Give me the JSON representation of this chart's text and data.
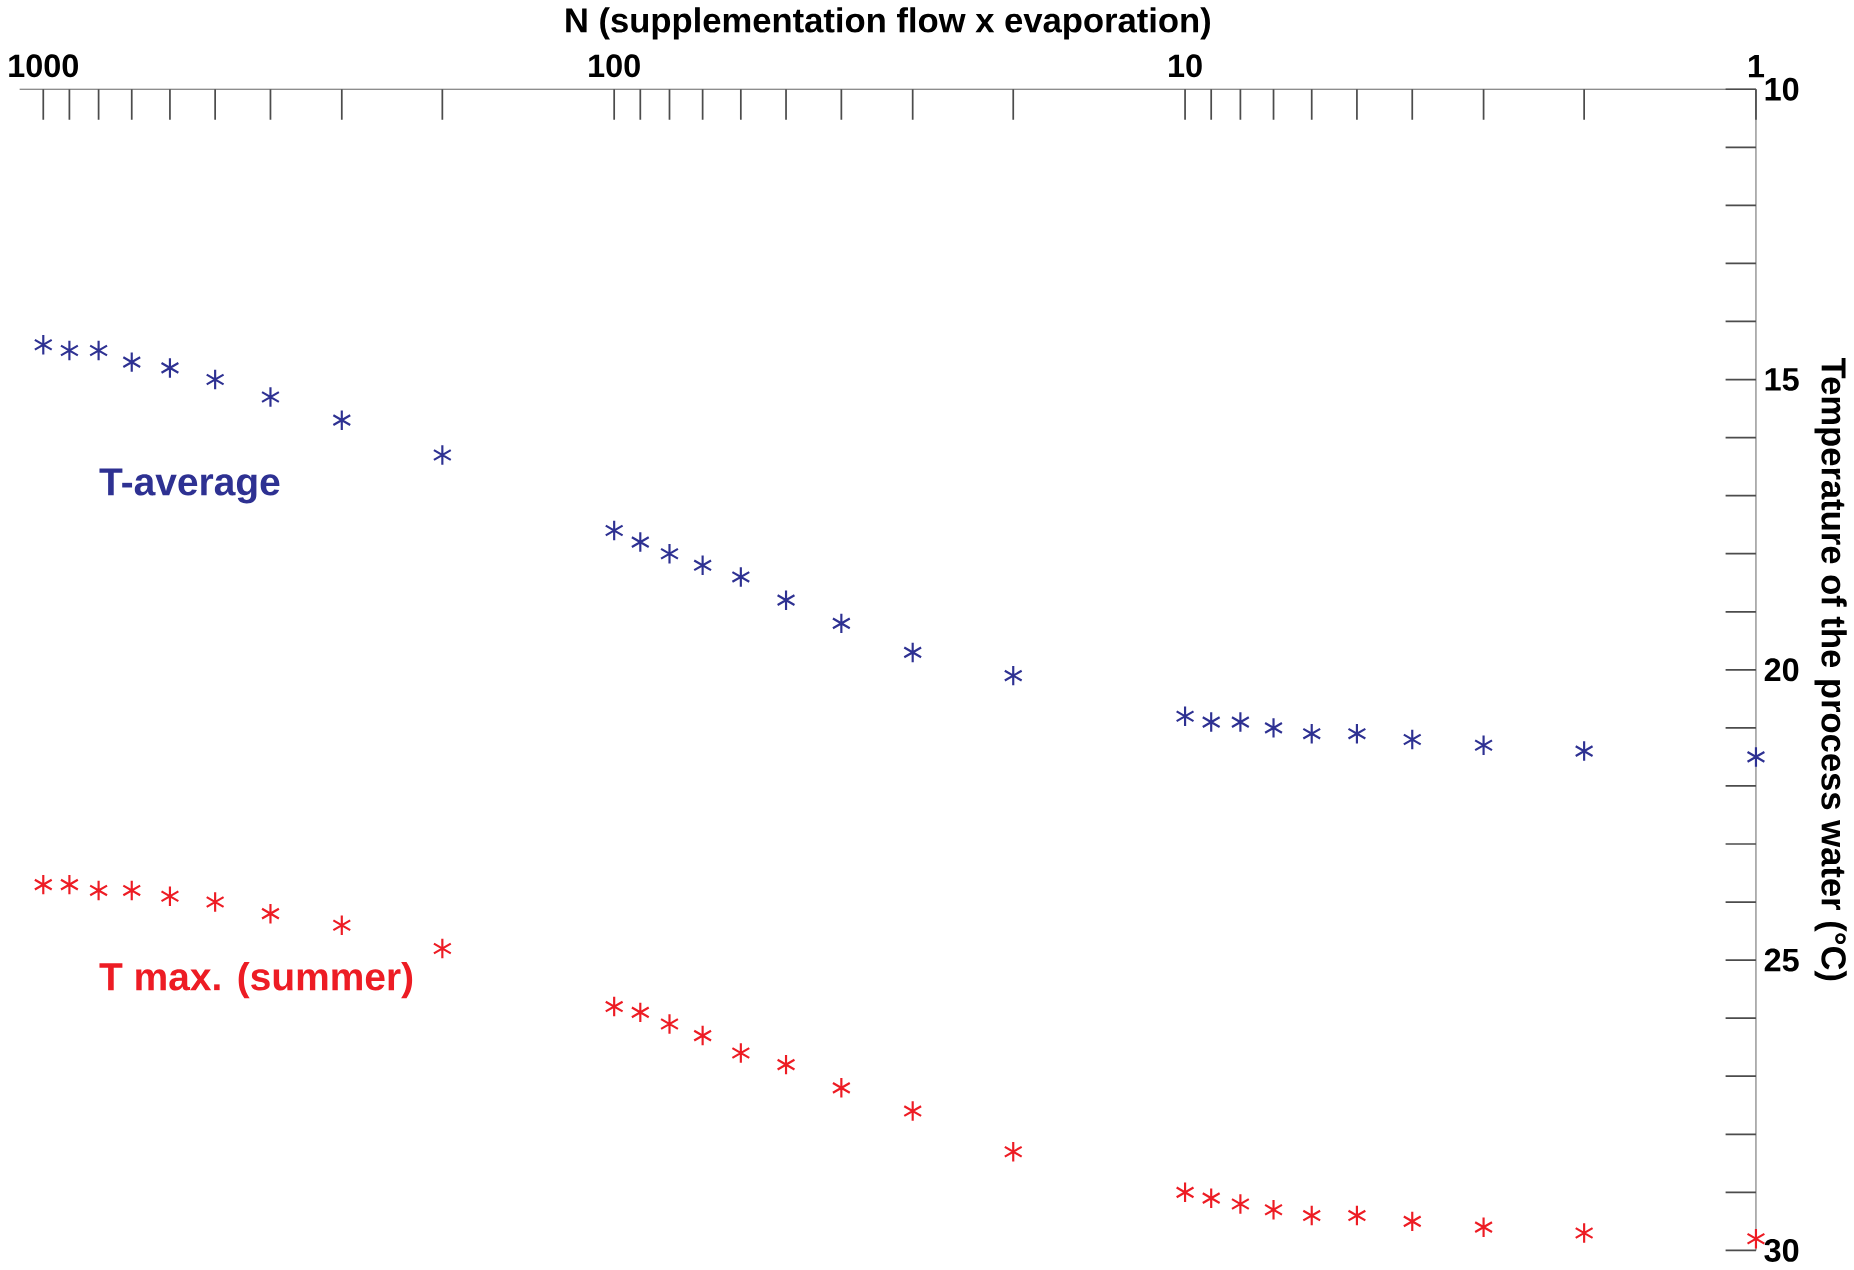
{
  "chart_data": {
    "type": "scatter",
    "xlabel": "N (supplementation flow x evaporation)",
    "ylabel": "Temperature of the process water (°C)",
    "log": "x",
    "grid": false,
    "legend": false,
    "marker": "cross",
    "x": [
      1000,
      900,
      800,
      700,
      600,
      500,
      400,
      300,
      200,
      100,
      90,
      80,
      70,
      60,
      50,
      40,
      30,
      20,
      10,
      9,
      8,
      7,
      6,
      5,
      4,
      3,
      2,
      1
    ],
    "xlim": [
      1100,
      1
    ],
    "ylim": [
      30,
      10
    ],
    "xticks": [
      {
        "value": 1000,
        "label": "1000"
      },
      {
        "value": 900,
        "label": null
      },
      {
        "value": 800,
        "label": null
      },
      {
        "value": 700,
        "label": null
      },
      {
        "value": 600,
        "label": null
      },
      {
        "value": 500,
        "label": null
      },
      {
        "value": 400,
        "label": null
      },
      {
        "value": 300,
        "label": null
      },
      {
        "value": 200,
        "label": null
      },
      {
        "value": 100,
        "label": "100"
      },
      {
        "value": 90,
        "label": null
      },
      {
        "value": 80,
        "label": null
      },
      {
        "value": 70,
        "label": null
      },
      {
        "value": 60,
        "label": null
      },
      {
        "value": 50,
        "label": null
      },
      {
        "value": 40,
        "label": null
      },
      {
        "value": 30,
        "label": null
      },
      {
        "value": 20,
        "label": null
      },
      {
        "value": 10,
        "label": "10"
      },
      {
        "value": 9,
        "label": null
      },
      {
        "value": 8,
        "label": null
      },
      {
        "value": 7,
        "label": null
      },
      {
        "value": 6,
        "label": null
      },
      {
        "value": 5,
        "label": null
      },
      {
        "value": 4,
        "label": null
      },
      {
        "value": 3,
        "label": null
      },
      {
        "value": 2,
        "label": null
      },
      {
        "value": 1,
        "label": "1"
      }
    ],
    "yticks": [
      10,
      {
        "value": 11,
        "label": null
      },
      {
        "value": 12,
        "label": null
      },
      {
        "value": 13,
        "label": null
      },
      {
        "value": 14,
        "label": null
      },
      15,
      {
        "value": 16,
        "label": null
      },
      {
        "value": 17,
        "label": null
      },
      {
        "value": 18,
        "label": null
      },
      {
        "value": 19,
        "label": null
      },
      20,
      {
        "value": 21,
        "label": null
      },
      {
        "value": 22,
        "label": null
      },
      {
        "value": 23,
        "label": null
      },
      {
        "value": 24,
        "label": null
      },
      25,
      {
        "value": 26,
        "label": null
      },
      {
        "value": 27,
        "label": null
      },
      {
        "value": 28,
        "label": null
      },
      {
        "value": 29,
        "label": null
      },
      30
    ],
    "series": [
      {
        "name": "T-average",
        "color": "#2e3192",
        "values": [
          14.4,
          14.5,
          14.5,
          14.7,
          14.8,
          15.0,
          15.3,
          15.7,
          16.3,
          17.6,
          17.8,
          18.0,
          18.2,
          18.4,
          18.8,
          19.2,
          19.7,
          20.1,
          20.8,
          20.9,
          20.9,
          21.0,
          21.1,
          21.1,
          21.2,
          21.3,
          21.4,
          21.5
        ]
      },
      {
        "name": "T max. (summer)",
        "color": "#ed1c24",
        "values": [
          23.7,
          23.7,
          23.8,
          23.8,
          23.9,
          24.0,
          24.2,
          24.4,
          24.8,
          25.8,
          25.9,
          26.1,
          26.3,
          26.6,
          26.8,
          27.2,
          27.6,
          28.3,
          29.0,
          29.1,
          29.2,
          29.3,
          29.4,
          29.4,
          29.5,
          29.6,
          29.7,
          29.8
        ]
      }
    ]
  }
}
